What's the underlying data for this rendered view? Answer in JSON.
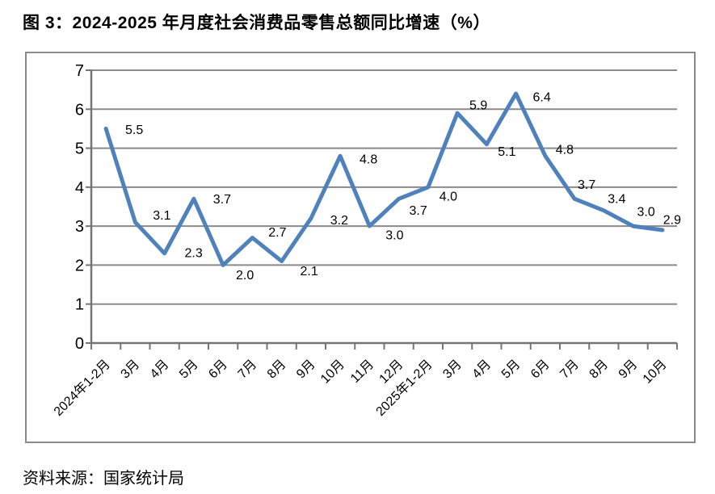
{
  "title": "图 3：2024-2025 年月度社会消费品零售总额同比增速（%）",
  "source_note": "资料来源：国家统计局",
  "chart_data": {
    "type": "line",
    "title": "图 3：2024-2025 年月度社会消费品零售总额同比增速（%）",
    "categories": [
      "2024年1-2月",
      "3月",
      "4月",
      "5月",
      "6月",
      "7月",
      "8月",
      "9月",
      "10月",
      "11月",
      "12月",
      "2025年1-2月",
      "3月",
      "4月",
      "5月",
      "6月",
      "7月",
      "8月",
      "9月",
      "10月"
    ],
    "values": [
      5.5,
      3.1,
      2.3,
      3.7,
      2.0,
      2.7,
      2.1,
      3.2,
      4.8,
      3.0,
      3.7,
      4.0,
      5.9,
      5.1,
      6.4,
      4.8,
      3.7,
      3.4,
      3.0,
      2.9
    ],
    "data_labels": [
      "5.5",
      "3.1",
      "2.3",
      "3.7",
      "2.0",
      "2.7",
      "2.1",
      "3.2",
      "4.8",
      "3.0",
      "3.7",
      "4.0",
      "5.9",
      "5.1",
      "6.4",
      "4.8",
      "3.7",
      "3.4",
      "3.0",
      "2.9"
    ],
    "xlabel": "",
    "ylabel": "",
    "ylim": [
      0,
      7
    ],
    "ytick_interval": 1,
    "ytick_labels": [
      "0",
      "1",
      "2",
      "3",
      "4",
      "5",
      "6",
      "7"
    ],
    "grid": true,
    "legend": false,
    "line_color": "#4F81BD",
    "gridline_color": "#8a8a8a",
    "axis_color": "#757575",
    "border_color": "#8a8a8a",
    "label_color": "#000000",
    "source": "国家统计局"
  }
}
